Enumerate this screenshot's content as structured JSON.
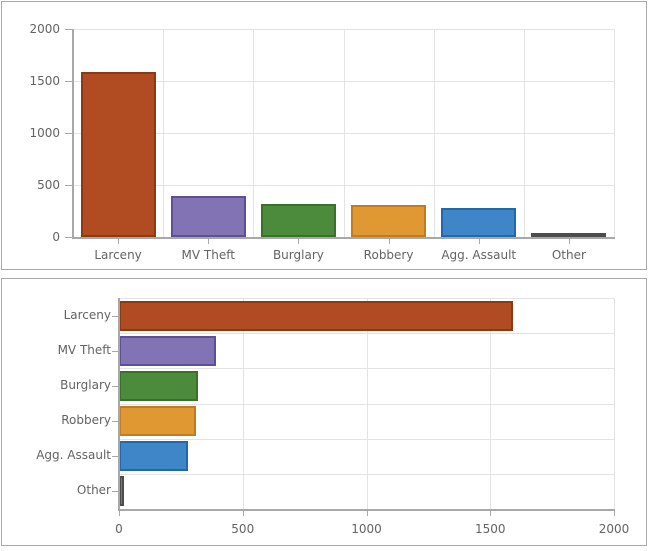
{
  "page": {
    "description_title": "Crime category bar charts",
    "background": "#ffffff",
    "panel_border_color": "#a9a9a9"
  },
  "palette": {
    "grid": "#e3e3e3",
    "axis": "#a8a8a8",
    "tick_text": "#636363",
    "fills": [
      "#b14c22",
      "#8273b4",
      "#4c8b3b",
      "#e09932",
      "#3e86c7",
      "#767676"
    ],
    "strokes": [
      "#8a3a14",
      "#5d5095",
      "#3a7029",
      "#c07c1e",
      "#2368ac",
      "#4c4c4c"
    ]
  },
  "chart_data": [
    {
      "type": "bar",
      "orientation": "vertical",
      "title": "",
      "categories": [
        "Larceny",
        "MV Theft",
        "Burglary",
        "Robbery",
        "Agg. Assault",
        "Other"
      ],
      "values": [
        1590,
        390,
        320,
        310,
        280,
        20
      ],
      "xlabel": "",
      "ylabel": "",
      "value_axis_range": [
        0,
        2000
      ],
      "value_axis_ticks": [
        0,
        500,
        1000,
        1500,
        2000
      ],
      "grid": true,
      "legend": false
    },
    {
      "type": "bar",
      "orientation": "horizontal",
      "title": "",
      "categories": [
        "Larceny",
        "MV Theft",
        "Burglary",
        "Robbery",
        "Agg. Assault",
        "Other"
      ],
      "values": [
        1590,
        390,
        320,
        310,
        280,
        20
      ],
      "xlabel": "",
      "ylabel": "",
      "value_axis_range": [
        0,
        2000
      ],
      "value_axis_ticks": [
        0,
        500,
        1000,
        1500,
        2000
      ],
      "grid": true,
      "legend": false
    }
  ]
}
